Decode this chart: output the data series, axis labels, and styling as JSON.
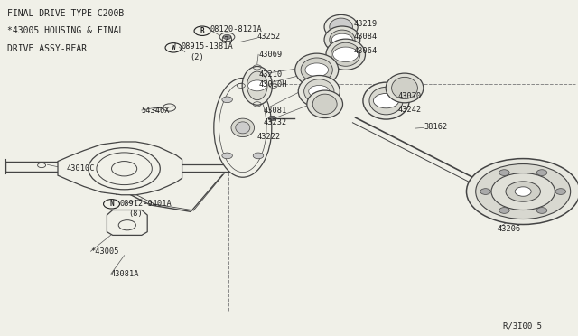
{
  "bg_color": "#f0f0e8",
  "line_color": "#444444",
  "text_color": "#222222",
  "header_lines": [
    "FINAL DRIVE TYPE C200B",
    "*43005 HOUSING & FINAL",
    "DRIVE ASSY-REAR"
  ],
  "footer_ref": "R/3I00 5"
}
